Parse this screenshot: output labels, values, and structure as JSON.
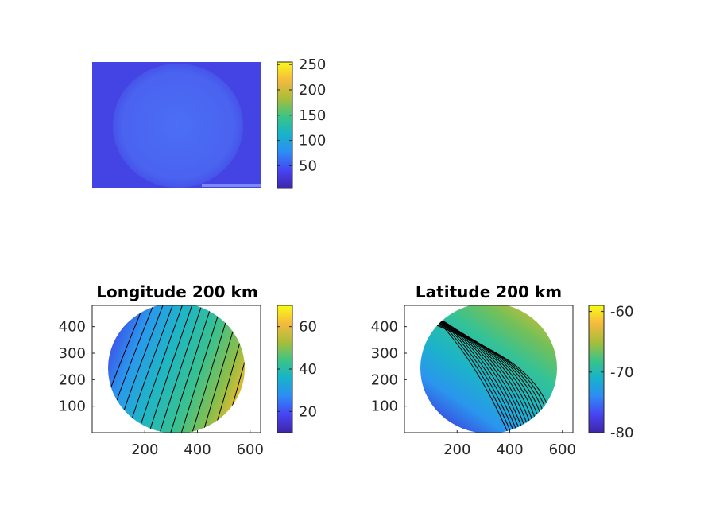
{
  "colors": {
    "background": "#ffffff",
    "axis": "#262626",
    "contour": "#000000",
    "parula": [
      "#3e26a8",
      "#4743f2",
      "#2d8df5",
      "#17b3c9",
      "#3cc486",
      "#a8bd3a",
      "#f6ba3e",
      "#f9fb15"
    ]
  },
  "chart_data": [
    {
      "type": "heatmap",
      "title": "",
      "description_image": "raw frame",
      "colorbar": {
        "ticks": [
          "50",
          "100",
          "150",
          "200",
          "250"
        ],
        "tick_values": [
          50,
          100,
          150,
          200,
          250
        ],
        "range": [
          5,
          255
        ]
      },
      "axes_visible": false
    },
    {
      "type": "heatmap",
      "title": "Longitude 200 km",
      "xlim": [
        0,
        640
      ],
      "ylim": [
        0,
        480
      ],
      "x_ticks": [
        "200",
        "400",
        "600"
      ],
      "x_tick_values": [
        200,
        400,
        600
      ],
      "y_ticks": [
        "100",
        "200",
        "300",
        "400"
      ],
      "y_tick_values": [
        100,
        200,
        300,
        400
      ],
      "colorbar": {
        "ticks": [
          "20",
          "40",
          "60"
        ],
        "tick_values": [
          20,
          40,
          60
        ],
        "range": [
          10,
          70
        ]
      },
      "contours": true
    },
    {
      "type": "heatmap",
      "title": "Latitude 200 km",
      "xlim": [
        0,
        640
      ],
      "ylim": [
        0,
        480
      ],
      "x_ticks": [
        "200",
        "400",
        "600"
      ],
      "x_tick_values": [
        200,
        400,
        600
      ],
      "y_ticks": [
        "100",
        "200",
        "300",
        "400"
      ],
      "y_tick_values": [
        100,
        200,
        300,
        400
      ],
      "colorbar": {
        "ticks": [
          "-60",
          "-70",
          "-80"
        ],
        "tick_values": [
          -60,
          -70,
          -80
        ],
        "range": [
          -80,
          -59
        ]
      },
      "contours": true
    }
  ]
}
